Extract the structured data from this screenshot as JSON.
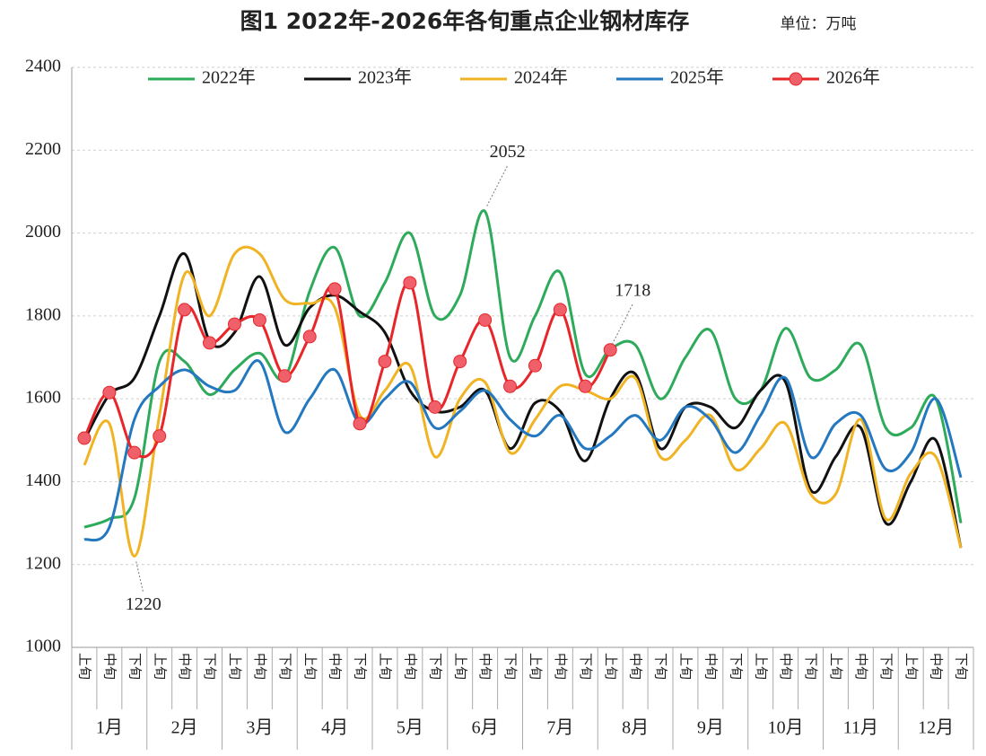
{
  "chart_data": {
    "type": "line",
    "title": "图1 2022年-2026年各旬重点企业钢材库存",
    "unit": "单位：万吨",
    "categories": [
      "上旬",
      "中旬",
      "下旬",
      "上旬",
      "中旬",
      "下旬",
      "上旬",
      "中旬",
      "下旬",
      "上旬",
      "中旬",
      "下旬",
      "上旬",
      "中旬",
      "下旬",
      "上旬",
      "中旬",
      "下旬",
      "上旬",
      "中旬",
      "下旬",
      "上旬",
      "中旬",
      "下旬",
      "上旬",
      "中旬",
      "下旬",
      "上旬",
      "中旬",
      "下旬",
      "上旬",
      "中旬",
      "下旬",
      "上旬",
      "中旬",
      "下旬"
    ],
    "month_groups": [
      "1月",
      "2月",
      "3月",
      "4月",
      "5月",
      "6月",
      "7月",
      "8月",
      "9月",
      "10月",
      "11月",
      "12月"
    ],
    "series": [
      {
        "name": "2022年",
        "color": "#2eab5a",
        "values": [
          1290,
          1310,
          1360,
          1690,
          1690,
          1610,
          1670,
          1710,
          1650,
          1860,
          1965,
          1800,
          1880,
          2000,
          1800,
          1850,
          2052,
          1700,
          1800,
          1905,
          1660,
          1720,
          1730,
          1600,
          1700,
          1765,
          1600,
          1620,
          1770,
          1650,
          1670,
          1730,
          1530,
          1530,
          1600,
          1300
        ]
      },
      {
        "name": "2023年",
        "color": "#111111",
        "values": [
          1500,
          1610,
          1650,
          1800,
          1950,
          1740,
          1760,
          1895,
          1730,
          1820,
          1850,
          1810,
          1760,
          1620,
          1570,
          1580,
          1620,
          1480,
          1590,
          1570,
          1450,
          1600,
          1660,
          1480,
          1580,
          1580,
          1530,
          1620,
          1640,
          1380,
          1460,
          1530,
          1300,
          1400,
          1500,
          1240
        ]
      },
      {
        "name": "2024年",
        "color": "#f0b323",
        "values": [
          1440,
          1540,
          1220,
          1560,
          1900,
          1800,
          1950,
          1950,
          1840,
          1830,
          1820,
          1560,
          1620,
          1680,
          1460,
          1600,
          1640,
          1470,
          1550,
          1630,
          1620,
          1600,
          1650,
          1460,
          1500,
          1560,
          1430,
          1480,
          1540,
          1370,
          1370,
          1550,
          1310,
          1420,
          1460,
          1240
        ]
      },
      {
        "name": "2025年",
        "color": "#2378c0",
        "values": [
          1260,
          1290,
          1550,
          1630,
          1670,
          1630,
          1620,
          1690,
          1520,
          1600,
          1670,
          1540,
          1600,
          1640,
          1530,
          1570,
          1620,
          1550,
          1510,
          1560,
          1480,
          1510,
          1560,
          1500,
          1580,
          1550,
          1470,
          1560,
          1650,
          1460,
          1540,
          1560,
          1430,
          1470,
          1600,
          1410
        ]
      },
      {
        "name": "2026年",
        "color": "#e8262a",
        "marker": "#f0606a",
        "values": [
          1505,
          1615,
          1470,
          1510,
          1815,
          1735,
          1780,
          1790,
          1655,
          1750,
          1865,
          1540,
          1690,
          1880,
          1580,
          1690,
          1790,
          1630,
          1680,
          1815,
          1630,
          1718,
          null,
          null,
          null,
          null,
          null,
          null,
          null,
          null,
          null,
          null,
          null,
          null,
          null,
          null
        ]
      }
    ],
    "annotations": [
      {
        "label": "1220",
        "series": 2,
        "index": 2
      },
      {
        "label": "2052",
        "series": 0,
        "index": 16
      },
      {
        "label": "1718",
        "series": 4,
        "index": 21
      }
    ],
    "ylim": [
      1000,
      2400
    ],
    "yticks": [
      1000,
      1200,
      1400,
      1600,
      1800,
      2000,
      2200,
      2400
    ],
    "grid": true,
    "legend": "top"
  }
}
